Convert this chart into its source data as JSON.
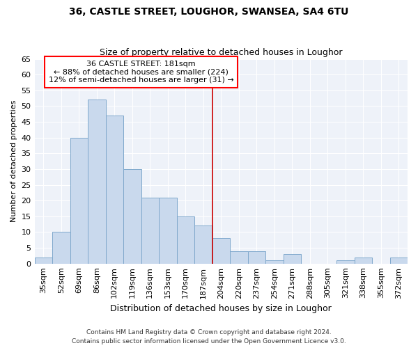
{
  "title1": "36, CASTLE STREET, LOUGHOR, SWANSEA, SA4 6TU",
  "title2": "Size of property relative to detached houses in Loughor",
  "xlabel": "Distribution of detached houses by size in Loughor",
  "ylabel": "Number of detached properties",
  "bar_labels": [
    "35sqm",
    "52sqm",
    "69sqm",
    "86sqm",
    "102sqm",
    "119sqm",
    "136sqm",
    "153sqm",
    "170sqm",
    "187sqm",
    "204sqm",
    "220sqm",
    "237sqm",
    "254sqm",
    "271sqm",
    "288sqm",
    "305sqm",
    "321sqm",
    "338sqm",
    "355sqm",
    "372sqm"
  ],
  "bar_values": [
    2,
    10,
    40,
    52,
    47,
    30,
    21,
    21,
    15,
    12,
    8,
    4,
    4,
    1,
    3,
    0,
    0,
    1,
    2,
    0,
    2
  ],
  "bar_color": "#c9d9ed",
  "bar_edge_color": "#7fa8cc",
  "background_color": "#eef2f9",
  "ylim": [
    0,
    65
  ],
  "yticks": [
    0,
    5,
    10,
    15,
    20,
    25,
    30,
    35,
    40,
    45,
    50,
    55,
    60,
    65
  ],
  "property_label": "36 CASTLE STREET: 181sqm",
  "annotation_line1": "← 88% of detached houses are smaller (224)",
  "annotation_line2": "12% of semi-detached houses are larger (31) →",
  "vline_bar_index": 9.5,
  "vline_color": "#cc0000",
  "footnote1": "Contains HM Land Registry data © Crown copyright and database right 2024.",
  "footnote2": "Contains public sector information licensed under the Open Government Licence v3.0.",
  "title1_fontsize": 10,
  "title2_fontsize": 9,
  "xlabel_fontsize": 9,
  "ylabel_fontsize": 8,
  "tick_fontsize": 8,
  "annot_fontsize": 8,
  "footnote_fontsize": 6.5
}
